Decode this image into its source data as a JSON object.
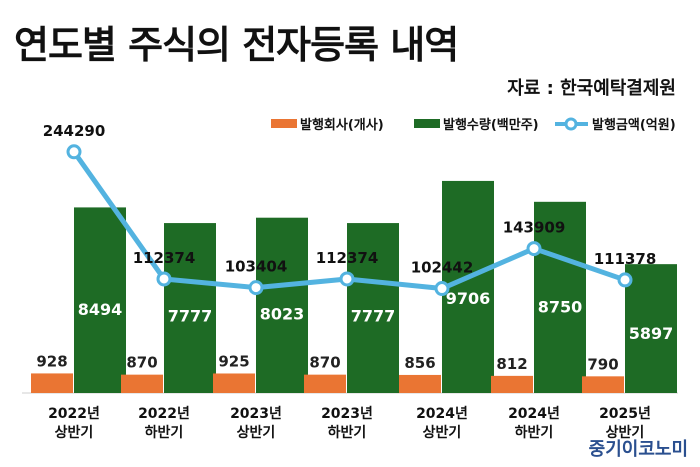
{
  "title": "연도별 주식의 전자등록 내역",
  "source": "자료 : 한국예탁결제원",
  "watermark": "중기이코노미",
  "colors": {
    "companies": "#ea7533",
    "quantity": "#1e6b25",
    "amount": "#53b3e0",
    "text": "#111111"
  },
  "chart_data": {
    "type": "bar",
    "categories": [
      [
        "2022년",
        "상반기"
      ],
      [
        "2022년",
        "하반기"
      ],
      [
        "2023년",
        "상반기"
      ],
      [
        "2023년",
        "하반기"
      ],
      [
        "2024년",
        "상반기"
      ],
      [
        "2024년",
        "하반기"
      ],
      [
        "2025년",
        "상반기"
      ]
    ],
    "series": [
      {
        "name": "발행회사(개사)",
        "type": "bar",
        "values": [
          928,
          870,
          925,
          870,
          856,
          812,
          790
        ]
      },
      {
        "name": "발행수량(백만주)",
        "type": "bar",
        "values": [
          8494,
          7777,
          8023,
          7777,
          9706,
          8750,
          5897
        ]
      },
      {
        "name": "발행금액(억원)",
        "type": "line",
        "values": [
          244290,
          112374,
          103404,
          112374,
          102442,
          143909,
          111378
        ]
      }
    ],
    "legend_position": "top-right",
    "grid": false
  }
}
